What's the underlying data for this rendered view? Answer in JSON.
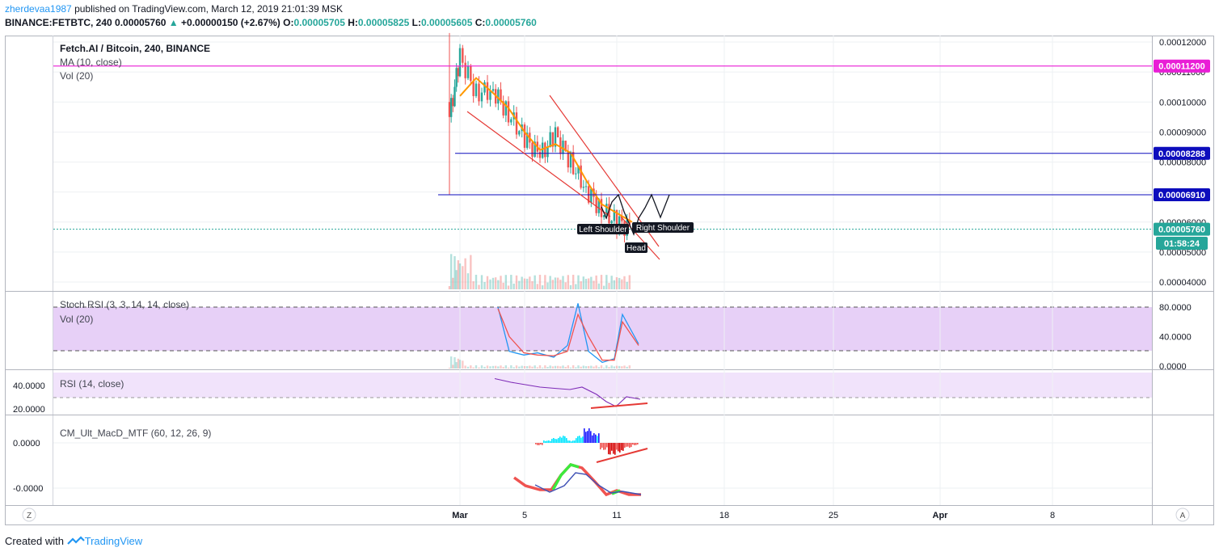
{
  "header": {
    "user": "zherdevaa1987",
    "published_text": "published on TradingView.com, March 12, 2019 21:01:39 MSK",
    "symbol": "BINANCE:FETBTC, 240",
    "last_price": "0.00005760",
    "change_arrow": "▲",
    "change": "+0.00000150 (+2.67%)",
    "open_label": "O:",
    "open": "0.00005705",
    "high_label": "H:",
    "high": "0.00005825",
    "low_label": "L:",
    "low": "0.00005605",
    "close_label": "C:",
    "close": "0.00005760"
  },
  "legends": {
    "title": "Fetch.AI / Bitcoin, 240, BINANCE",
    "ma": "MA (10, close)",
    "vol": "Vol (20)",
    "stoch": "Stoch RSI (3, 3, 14, 14, close)",
    "vol2": "Vol (20)",
    "rsi": "RSI (14, close)",
    "macd": "CM_Ult_MacD_MTF (60, 12, 26, 9)"
  },
  "price_axis": [
    "0.00012000",
    "0.00011000",
    "0.00010000",
    "0.00009000",
    "0.00008000",
    "0.00007000",
    "0.00006000",
    "0.00005000",
    "0.00004000"
  ],
  "price_badges": [
    {
      "text": "0.00011200",
      "color": "#e91ed6"
    },
    {
      "text": "0.00008288",
      "color": "#0d0dbd"
    },
    {
      "text": "0.00006910",
      "color": "#0d0dbd"
    },
    {
      "text": "0.00005760",
      "color": "#26a69a"
    },
    {
      "text": "01:58:24",
      "color": "#26a69a"
    }
  ],
  "stoch_axis": [
    "80.0000",
    "40.0000",
    "0.0000"
  ],
  "rsi_axis": [
    "40.0000",
    "20.0000"
  ],
  "macd_axis": [
    "0.0000",
    "-0.0000"
  ],
  "time_axis": [
    "Mar",
    "5",
    "11",
    "18",
    "25",
    "Apr",
    "8"
  ],
  "annotations": {
    "left_shoulder": "Left Shoulder",
    "right_shoulder": "Right Shoulder",
    "head": "Head"
  },
  "bottom_buttons": {
    "left": "Z",
    "right": "A"
  },
  "footer": {
    "created_with": "Created with",
    "brand": "TradingView"
  },
  "colors": {
    "up": "#26a69a",
    "down": "#ef5350",
    "ma": "#ff9800",
    "stoch_k": "#2196f3",
    "stoch_d": "#ef5350",
    "rsi": "#7e2bb7",
    "band": "#e1c4f5",
    "accent_magenta": "#e91ed6",
    "accent_blue": "#0d0dbd"
  },
  "chart_data": {
    "type": "line",
    "title": "Fetch.AI / Bitcoin, 240, BINANCE",
    "x_ticks": [
      "Mar",
      "5",
      "11",
      "18",
      "25",
      "Apr",
      "8"
    ],
    "ylim": [
      3.8e-05,
      0.000125
    ],
    "close_series": {
      "name": "FETBTC",
      "x": [
        "Feb 28",
        "Mar 1",
        "Mar 2",
        "Mar 3",
        "Mar 4",
        "Mar 5",
        "Mar 6",
        "Mar 7",
        "Mar 8",
        "Mar 9",
        "Mar 10",
        "Mar 11",
        "Mar 12"
      ],
      "values": [
        9.5e-05,
        0.000115,
        0.000103,
        0.000104,
        9.6e-05,
        8.8e-05,
        8.2e-05,
        8.9e-05,
        8e-05,
        7.1e-05,
        6.4e-05,
        6e-05,
        5.76e-05
      ]
    },
    "ma_series": {
      "name": "MA (10, close)",
      "values": [
        null,
        0.000102,
        0.000108,
        0.000103,
        9.8e-05,
        9e-05,
        8.4e-05,
        8.6e-05,
        8.3e-05,
        7.4e-05,
        6.6e-05,
        6.3e-05,
        6e-05
      ]
    },
    "horizontal_levels": [
      0.000112,
      8.288e-05,
      6.91e-05,
      5.76e-05
    ],
    "stoch_rsi": {
      "name": "Stoch RSI (3, 3, 14, 14, close)",
      "k": [
        null,
        80,
        20,
        15,
        18,
        12,
        28,
        85,
        20,
        5,
        10,
        70,
        30
      ],
      "d": [
        null,
        78,
        40,
        18,
        15,
        14,
        20,
        70,
        40,
        8,
        8,
        60,
        28
      ],
      "ylim": [
        0,
        100
      ]
    },
    "rsi": {
      "name": "RSI (14, close)",
      "values": [
        null,
        45,
        42,
        40,
        38,
        37,
        36,
        38,
        32,
        26,
        22,
        30,
        28
      ],
      "ylim": [
        10,
        50
      ]
    },
    "macd": {
      "name": "CM_Ult_MacD_MTF (60, 12, 26, 9)",
      "histogram": [
        -1,
        1,
        2,
        3,
        1,
        3,
        6,
        4,
        -3,
        -5,
        -4,
        -2,
        -1
      ]
    }
  }
}
